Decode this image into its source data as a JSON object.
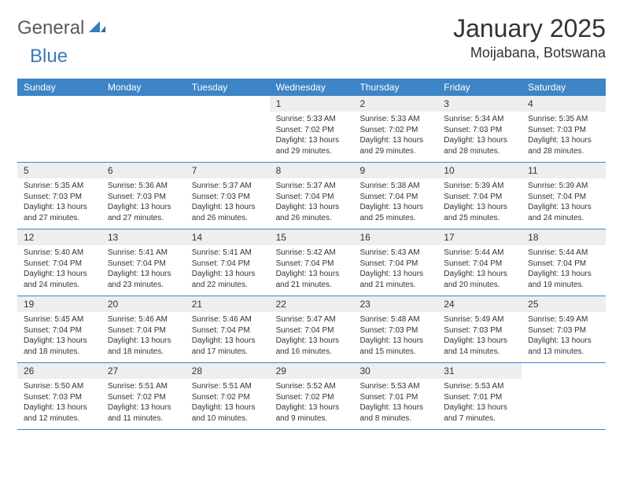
{
  "logo": {
    "general": "General",
    "blue": "Blue"
  },
  "title": "January 2025",
  "location": "Moijabana, Botswana",
  "colors": {
    "headerBar": "#3d85c6",
    "dayNumBg": "#eeeeee",
    "textDark": "#333333",
    "logoGray": "#5a5a5a",
    "logoBlue": "#3a7ab8"
  },
  "weekdays": [
    "Sunday",
    "Monday",
    "Tuesday",
    "Wednesday",
    "Thursday",
    "Friday",
    "Saturday"
  ],
  "weeks": [
    [
      {
        "n": "",
        "sunrise": "",
        "sunset": "",
        "day1": "",
        "day2": ""
      },
      {
        "n": "",
        "sunrise": "",
        "sunset": "",
        "day1": "",
        "day2": ""
      },
      {
        "n": "",
        "sunrise": "",
        "sunset": "",
        "day1": "",
        "day2": ""
      },
      {
        "n": "1",
        "sunrise": "Sunrise: 5:33 AM",
        "sunset": "Sunset: 7:02 PM",
        "day1": "Daylight: 13 hours",
        "day2": "and 29 minutes."
      },
      {
        "n": "2",
        "sunrise": "Sunrise: 5:33 AM",
        "sunset": "Sunset: 7:02 PM",
        "day1": "Daylight: 13 hours",
        "day2": "and 29 minutes."
      },
      {
        "n": "3",
        "sunrise": "Sunrise: 5:34 AM",
        "sunset": "Sunset: 7:03 PM",
        "day1": "Daylight: 13 hours",
        "day2": "and 28 minutes."
      },
      {
        "n": "4",
        "sunrise": "Sunrise: 5:35 AM",
        "sunset": "Sunset: 7:03 PM",
        "day1": "Daylight: 13 hours",
        "day2": "and 28 minutes."
      }
    ],
    [
      {
        "n": "5",
        "sunrise": "Sunrise: 5:35 AM",
        "sunset": "Sunset: 7:03 PM",
        "day1": "Daylight: 13 hours",
        "day2": "and 27 minutes."
      },
      {
        "n": "6",
        "sunrise": "Sunrise: 5:36 AM",
        "sunset": "Sunset: 7:03 PM",
        "day1": "Daylight: 13 hours",
        "day2": "and 27 minutes."
      },
      {
        "n": "7",
        "sunrise": "Sunrise: 5:37 AM",
        "sunset": "Sunset: 7:03 PM",
        "day1": "Daylight: 13 hours",
        "day2": "and 26 minutes."
      },
      {
        "n": "8",
        "sunrise": "Sunrise: 5:37 AM",
        "sunset": "Sunset: 7:04 PM",
        "day1": "Daylight: 13 hours",
        "day2": "and 26 minutes."
      },
      {
        "n": "9",
        "sunrise": "Sunrise: 5:38 AM",
        "sunset": "Sunset: 7:04 PM",
        "day1": "Daylight: 13 hours",
        "day2": "and 25 minutes."
      },
      {
        "n": "10",
        "sunrise": "Sunrise: 5:39 AM",
        "sunset": "Sunset: 7:04 PM",
        "day1": "Daylight: 13 hours",
        "day2": "and 25 minutes."
      },
      {
        "n": "11",
        "sunrise": "Sunrise: 5:39 AM",
        "sunset": "Sunset: 7:04 PM",
        "day1": "Daylight: 13 hours",
        "day2": "and 24 minutes."
      }
    ],
    [
      {
        "n": "12",
        "sunrise": "Sunrise: 5:40 AM",
        "sunset": "Sunset: 7:04 PM",
        "day1": "Daylight: 13 hours",
        "day2": "and 24 minutes."
      },
      {
        "n": "13",
        "sunrise": "Sunrise: 5:41 AM",
        "sunset": "Sunset: 7:04 PM",
        "day1": "Daylight: 13 hours",
        "day2": "and 23 minutes."
      },
      {
        "n": "14",
        "sunrise": "Sunrise: 5:41 AM",
        "sunset": "Sunset: 7:04 PM",
        "day1": "Daylight: 13 hours",
        "day2": "and 22 minutes."
      },
      {
        "n": "15",
        "sunrise": "Sunrise: 5:42 AM",
        "sunset": "Sunset: 7:04 PM",
        "day1": "Daylight: 13 hours",
        "day2": "and 21 minutes."
      },
      {
        "n": "16",
        "sunrise": "Sunrise: 5:43 AM",
        "sunset": "Sunset: 7:04 PM",
        "day1": "Daylight: 13 hours",
        "day2": "and 21 minutes."
      },
      {
        "n": "17",
        "sunrise": "Sunrise: 5:44 AM",
        "sunset": "Sunset: 7:04 PM",
        "day1": "Daylight: 13 hours",
        "day2": "and 20 minutes."
      },
      {
        "n": "18",
        "sunrise": "Sunrise: 5:44 AM",
        "sunset": "Sunset: 7:04 PM",
        "day1": "Daylight: 13 hours",
        "day2": "and 19 minutes."
      }
    ],
    [
      {
        "n": "19",
        "sunrise": "Sunrise: 5:45 AM",
        "sunset": "Sunset: 7:04 PM",
        "day1": "Daylight: 13 hours",
        "day2": "and 18 minutes."
      },
      {
        "n": "20",
        "sunrise": "Sunrise: 5:46 AM",
        "sunset": "Sunset: 7:04 PM",
        "day1": "Daylight: 13 hours",
        "day2": "and 18 minutes."
      },
      {
        "n": "21",
        "sunrise": "Sunrise: 5:46 AM",
        "sunset": "Sunset: 7:04 PM",
        "day1": "Daylight: 13 hours",
        "day2": "and 17 minutes."
      },
      {
        "n": "22",
        "sunrise": "Sunrise: 5:47 AM",
        "sunset": "Sunset: 7:04 PM",
        "day1": "Daylight: 13 hours",
        "day2": "and 16 minutes."
      },
      {
        "n": "23",
        "sunrise": "Sunrise: 5:48 AM",
        "sunset": "Sunset: 7:03 PM",
        "day1": "Daylight: 13 hours",
        "day2": "and 15 minutes."
      },
      {
        "n": "24",
        "sunrise": "Sunrise: 5:49 AM",
        "sunset": "Sunset: 7:03 PM",
        "day1": "Daylight: 13 hours",
        "day2": "and 14 minutes."
      },
      {
        "n": "25",
        "sunrise": "Sunrise: 5:49 AM",
        "sunset": "Sunset: 7:03 PM",
        "day1": "Daylight: 13 hours",
        "day2": "and 13 minutes."
      }
    ],
    [
      {
        "n": "26",
        "sunrise": "Sunrise: 5:50 AM",
        "sunset": "Sunset: 7:03 PM",
        "day1": "Daylight: 13 hours",
        "day2": "and 12 minutes."
      },
      {
        "n": "27",
        "sunrise": "Sunrise: 5:51 AM",
        "sunset": "Sunset: 7:02 PM",
        "day1": "Daylight: 13 hours",
        "day2": "and 11 minutes."
      },
      {
        "n": "28",
        "sunrise": "Sunrise: 5:51 AM",
        "sunset": "Sunset: 7:02 PM",
        "day1": "Daylight: 13 hours",
        "day2": "and 10 minutes."
      },
      {
        "n": "29",
        "sunrise": "Sunrise: 5:52 AM",
        "sunset": "Sunset: 7:02 PM",
        "day1": "Daylight: 13 hours",
        "day2": "and 9 minutes."
      },
      {
        "n": "30",
        "sunrise": "Sunrise: 5:53 AM",
        "sunset": "Sunset: 7:01 PM",
        "day1": "Daylight: 13 hours",
        "day2": "and 8 minutes."
      },
      {
        "n": "31",
        "sunrise": "Sunrise: 5:53 AM",
        "sunset": "Sunset: 7:01 PM",
        "day1": "Daylight: 13 hours",
        "day2": "and 7 minutes."
      },
      {
        "n": "",
        "sunrise": "",
        "sunset": "",
        "day1": "",
        "day2": ""
      }
    ]
  ]
}
